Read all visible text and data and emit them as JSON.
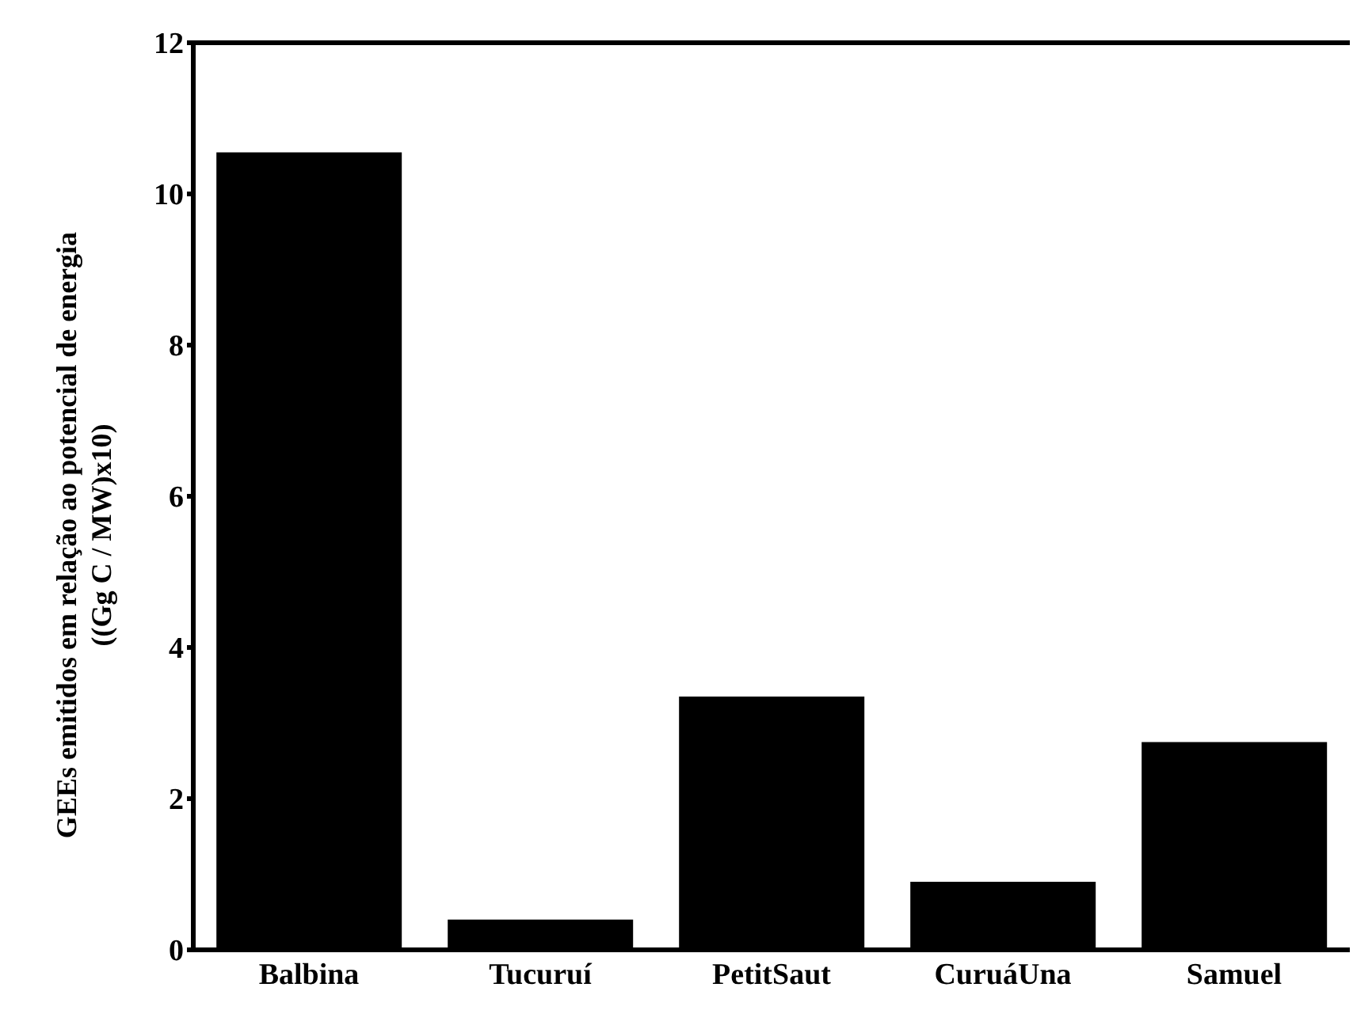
{
  "chart_data": {
    "type": "bar",
    "ylabel": "GEEs emitidos em relação ao potencial de energia\n((Gg C / MW)x10)",
    "categories": [
      "Balbina",
      "Tucuruí",
      "PetitSaut",
      "CuruáUna",
      "Samuel"
    ],
    "values": [
      10.55,
      0.4,
      3.35,
      0.9,
      2.75
    ],
    "color": "#000000",
    "ylim": [
      0,
      12
    ],
    "yticks": [
      0,
      2,
      4,
      6,
      8,
      10,
      12
    ],
    "grid": false
  }
}
